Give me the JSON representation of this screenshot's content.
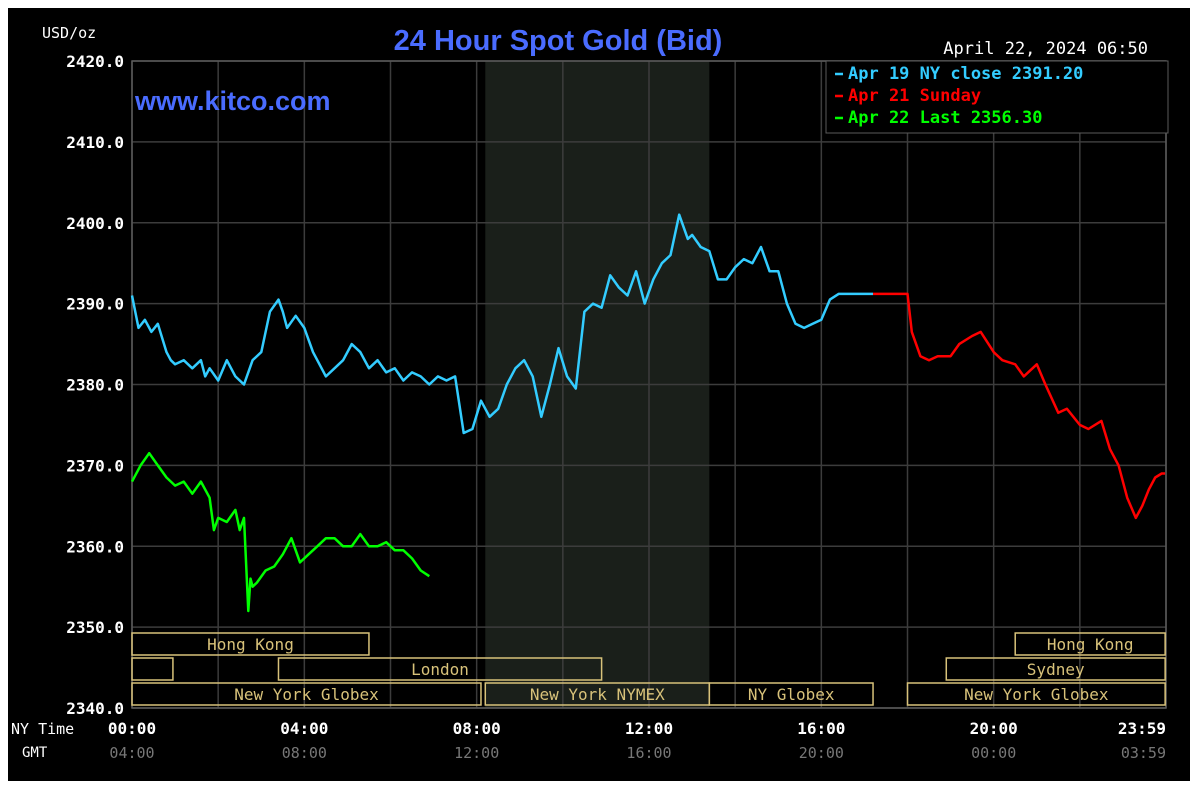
{
  "chart_data": {
    "type": "line",
    "title": "24 Hour Spot Gold (Bid)",
    "watermark": "www.kitco.com",
    "timestamp": "April 22, 2024 06:50",
    "ylabel": "USD/oz",
    "ylim": [
      2340,
      2420
    ],
    "y_ticks": [
      "2420.0",
      "2410.0",
      "2400.0",
      "2390.0",
      "2380.0",
      "2370.0",
      "2360.0",
      "2350.0",
      "2340.0"
    ],
    "xlim": [
      0,
      24
    ],
    "grid": true,
    "x_row_labels": {
      "ny": "NY Time",
      "gmt": "GMT"
    },
    "x_ticks": [
      {
        "hour": 0,
        "ny": "00:00",
        "gmt": "04:00"
      },
      {
        "hour": 4,
        "ny": "04:00",
        "gmt": "08:00"
      },
      {
        "hour": 8,
        "ny": "08:00",
        "gmt": "12:00"
      },
      {
        "hour": 12,
        "ny": "12:00",
        "gmt": "16:00"
      },
      {
        "hour": 16,
        "ny": "16:00",
        "gmt": "20:00"
      },
      {
        "hour": 20,
        "ny": "20:00",
        "gmt": "00:00"
      },
      {
        "hour": 23.98,
        "ny": "23:59",
        "gmt": "03:59"
      }
    ],
    "legend": {
      "position": "top-right",
      "entries": [
        {
          "label": "Apr 19 NY close 2391.20",
          "color": "#33ccff"
        },
        {
          "label": "Apr 21 Sunday",
          "color": "#ff0000"
        },
        {
          "label": "Apr 22 Last 2356.30",
          "color": "#00ff00"
        }
      ]
    },
    "shaded_range": {
      "from": 8.2,
      "to": 13.4
    },
    "sessions": [
      {
        "label": "Hong Kong",
        "from": 0,
        "to": 5.5,
        "row": 0
      },
      {
        "label": "",
        "from": 0,
        "to": 0.95,
        "row": 1
      },
      {
        "label": "London",
        "from": 3.4,
        "to": 10.9,
        "row": 1
      },
      {
        "label": "New York Globex",
        "from": 0,
        "to": 8.1,
        "row": 2
      },
      {
        "label": "New York NYMEX",
        "from": 8.2,
        "to": 13.4,
        "row": 2
      },
      {
        "label": "NY Globex",
        "from": 13.4,
        "to": 17.2,
        "row": 2
      },
      {
        "label": "Hong Kong",
        "from": 20.5,
        "to": 23.98,
        "row": 0
      },
      {
        "label": "Sydney",
        "from": 18.9,
        "to": 23.98,
        "row": 1
      },
      {
        "label": "New York Globex",
        "from": 18.0,
        "to": 23.98,
        "row": 2
      }
    ],
    "series": [
      {
        "name": "Apr 19 NY close 2391.20",
        "color": "#33ccff",
        "x": [
          0,
          0.15,
          0.3,
          0.45,
          0.6,
          0.8,
          0.9,
          1.0,
          1.2,
          1.4,
          1.6,
          1.7,
          1.8,
          2.0,
          2.2,
          2.4,
          2.6,
          2.8,
          3.0,
          3.2,
          3.4,
          3.5,
          3.6,
          3.8,
          4.0,
          4.2,
          4.3,
          4.5,
          4.7,
          4.9,
          5.1,
          5.3,
          5.5,
          5.7,
          5.9,
          6.1,
          6.3,
          6.5,
          6.7,
          6.9,
          7.1,
          7.3,
          7.5,
          7.7,
          7.9,
          8.1,
          8.3,
          8.5,
          8.7,
          8.9,
          9.1,
          9.3,
          9.5,
          9.7,
          9.9,
          10.1,
          10.3,
          10.5,
          10.7,
          10.9,
          11.1,
          11.3,
          11.5,
          11.7,
          11.9,
          12.1,
          12.3,
          12.5,
          12.7,
          12.9,
          13.0,
          13.2,
          13.4,
          13.6,
          13.8,
          14.0,
          14.2,
          14.4,
          14.6,
          14.8,
          15.0,
          15.2,
          15.4,
          15.6,
          15.8,
          16.0,
          16.2,
          16.4,
          16.6,
          16.8,
          17.0,
          17.2
        ],
        "values": [
          2391,
          2387,
          2388,
          2386.5,
          2387.5,
          2384,
          2383,
          2382.5,
          2383,
          2382,
          2383,
          2381,
          2382,
          2380.5,
          2383,
          2381,
          2380,
          2383,
          2384,
          2389,
          2390.5,
          2389,
          2387,
          2388.5,
          2387,
          2384,
          2383,
          2381,
          2382,
          2383,
          2385,
          2384,
          2382,
          2383,
          2381.5,
          2382,
          2380.5,
          2381.5,
          2381,
          2380,
          2381,
          2380.5,
          2381,
          2374,
          2374.5,
          2378,
          2376,
          2377,
          2380,
          2382,
          2383,
          2381,
          2376,
          2380,
          2384.5,
          2381,
          2379.5,
          2389,
          2390,
          2389.5,
          2393.5,
          2392,
          2391,
          2394,
          2390,
          2393,
          2395,
          2396,
          2401,
          2398,
          2398.5,
          2397,
          2396.5,
          2393,
          2393,
          2394.5,
          2395.5,
          2395,
          2397,
          2394,
          2394,
          2390,
          2387.5,
          2387,
          2387.5,
          2388,
          2390.5,
          2391.2,
          2391.2,
          2391.2,
          2391.2,
          2391.2
        ]
      },
      {
        "name": "Apr 21 Sunday",
        "color": "#ff0000",
        "x": [
          17.2,
          17.5,
          18.0,
          18.1,
          18.2,
          18.3,
          18.5,
          18.7,
          19.0,
          19.2,
          19.5,
          19.7,
          20.0,
          20.2,
          20.5,
          20.7,
          21.0,
          21.2,
          21.5,
          21.7,
          22.0,
          22.2,
          22.5,
          22.7,
          22.9,
          23.1,
          23.3,
          23.45,
          23.6,
          23.75,
          23.9,
          23.98
        ],
        "values": [
          2391.2,
          2391.2,
          2391.2,
          2386.5,
          2385,
          2383.5,
          2383,
          2383.5,
          2383.5,
          2385,
          2386,
          2386.5,
          2384,
          2383,
          2382.5,
          2381,
          2382.5,
          2380,
          2376.5,
          2377,
          2375,
          2374.5,
          2375.5,
          2372,
          2370,
          2366,
          2363.5,
          2365,
          2367,
          2368.5,
          2369,
          2369
        ]
      },
      {
        "name": "Apr 22 Last 2356.30",
        "color": "#00ff00",
        "x": [
          0,
          0.2,
          0.4,
          0.6,
          0.8,
          1.0,
          1.2,
          1.4,
          1.6,
          1.8,
          1.9,
          2.0,
          2.2,
          2.4,
          2.5,
          2.6,
          2.7,
          2.75,
          2.8,
          2.9,
          3.1,
          3.3,
          3.5,
          3.7,
          3.9,
          4.1,
          4.3,
          4.5,
          4.7,
          4.9,
          5.1,
          5.3,
          5.5,
          5.7,
          5.9,
          6.1,
          6.3,
          6.5,
          6.7,
          6.9
        ],
        "values": [
          2368,
          2370,
          2371.5,
          2370,
          2368.5,
          2367.5,
          2368,
          2366.5,
          2368,
          2366,
          2362,
          2363.5,
          2363,
          2364.5,
          2362,
          2363.5,
          2352,
          2356,
          2355,
          2355.5,
          2357,
          2357.5,
          2359,
          2361,
          2358,
          2359,
          2360,
          2361,
          2361,
          2360,
          2360,
          2361.5,
          2360,
          2360,
          2360.5,
          2359.5,
          2359.5,
          2358.5,
          2357,
          2356.3
        ]
      }
    ]
  }
}
